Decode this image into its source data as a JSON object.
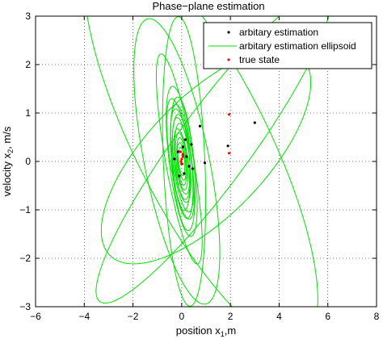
{
  "chart_data": {
    "type": "scatter",
    "title": "Phase−plane estimation",
    "xlabel": {
      "base": "position x",
      "sub": "1",
      "after": ",m"
    },
    "ylabel": {
      "base": "velocity x",
      "sub": "2",
      "after": ", m/s"
    },
    "xlim": [
      -6,
      8
    ],
    "ylim": [
      -3,
      3
    ],
    "xticks": [
      -6,
      -4,
      -2,
      0,
      2,
      4,
      6,
      8
    ],
    "yticks": [
      -3,
      -2,
      -1,
      0,
      1,
      2,
      3
    ],
    "xtick_labels": [
      "−6",
      "−4",
      "−2",
      "0",
      "2",
      "4",
      "6",
      "8"
    ],
    "ytick_labels": [
      "−3",
      "−2",
      "−1",
      "0",
      "1",
      "2",
      "3"
    ],
    "grid": true,
    "legend_position": "top-right",
    "series": [
      {
        "name": "arbitary estimation",
        "kind": "points",
        "color": "#000000",
        "points": [
          [
            3.0,
            0.8
          ],
          [
            1.9,
            0.32
          ],
          [
            0.75,
            0.73
          ],
          [
            0.95,
            -0.03
          ],
          [
            -0.3,
            0.05
          ],
          [
            0.4,
            0.35
          ],
          [
            0.1,
            -0.25
          ],
          [
            -0.15,
            0.2
          ],
          [
            0.2,
            0.1
          ],
          [
            0.0,
            -0.05
          ],
          [
            0.3,
            -0.1
          ],
          [
            -0.1,
            -0.3
          ],
          [
            0.15,
            0.45
          ],
          [
            0.45,
            -0.15
          ],
          [
            0.05,
            0.3
          ]
        ]
      },
      {
        "name": "arbitary estimation ellipsoid",
        "kind": "ellipses",
        "color": "#00e000",
        "ellipses": [
          {
            "cx": 0.8,
            "cy": 0.4,
            "a": 6.0,
            "b": 2.1,
            "angle": 140
          },
          {
            "cx": 1.3,
            "cy": 0.3,
            "a": 5.7,
            "b": 1.05,
            "angle": 33
          },
          {
            "cx": 1.0,
            "cy": 0.1,
            "a": 4.6,
            "b": 1.5,
            "angle": 22
          },
          {
            "cx": -0.2,
            "cy": 0.0,
            "a": 3.2,
            "b": 1.25,
            "angle": 115
          },
          {
            "cx": 0.1,
            "cy": 0.0,
            "a": 3.0,
            "b": 0.85,
            "angle": 95
          },
          {
            "cx": -0.1,
            "cy": 0.05,
            "a": 2.3,
            "b": 0.55,
            "angle": 110
          },
          {
            "cx": 0.0,
            "cy": 0.0,
            "a": 1.6,
            "b": 0.5,
            "angle": 105
          },
          {
            "cx": 0.05,
            "cy": -0.05,
            "a": 1.4,
            "b": 0.45,
            "angle": 100
          },
          {
            "cx": -0.05,
            "cy": 0.05,
            "a": 1.3,
            "b": 0.42,
            "angle": 108
          },
          {
            "cx": 0.0,
            "cy": 0.0,
            "a": 1.2,
            "b": 0.4,
            "angle": 102
          },
          {
            "cx": 0.02,
            "cy": 0.02,
            "a": 1.1,
            "b": 0.38,
            "angle": 106
          },
          {
            "cx": -0.02,
            "cy": -0.02,
            "a": 1.0,
            "b": 0.35,
            "angle": 98
          },
          {
            "cx": 0.0,
            "cy": 0.03,
            "a": 0.9,
            "b": 0.32,
            "angle": 104
          },
          {
            "cx": 0.03,
            "cy": 0.0,
            "a": 0.8,
            "b": 0.3,
            "angle": 100
          },
          {
            "cx": 0.0,
            "cy": 0.0,
            "a": 0.7,
            "b": 0.26,
            "angle": 107
          },
          {
            "cx": 0.0,
            "cy": 0.0,
            "a": 0.6,
            "b": 0.22,
            "angle": 103
          },
          {
            "cx": 0.0,
            "cy": 0.0,
            "a": 0.5,
            "b": 0.18,
            "angle": 101
          },
          {
            "cx": 0.0,
            "cy": 0.0,
            "a": 0.4,
            "b": 0.15,
            "angle": 105
          },
          {
            "cx": 0.0,
            "cy": 0.0,
            "a": 0.3,
            "b": 0.12,
            "angle": 100
          }
        ]
      },
      {
        "name": "true state",
        "kind": "points",
        "color": "#ff0000",
        "points": [
          [
            1.95,
            0.97
          ],
          [
            1.95,
            0.17
          ],
          [
            0.05,
            0.1
          ],
          [
            -0.05,
            0.2
          ],
          [
            0.0,
            0.05
          ],
          [
            0.02,
            -0.05
          ],
          [
            -0.03,
            0.0
          ],
          [
            0.05,
            0.15
          ]
        ]
      }
    ]
  }
}
